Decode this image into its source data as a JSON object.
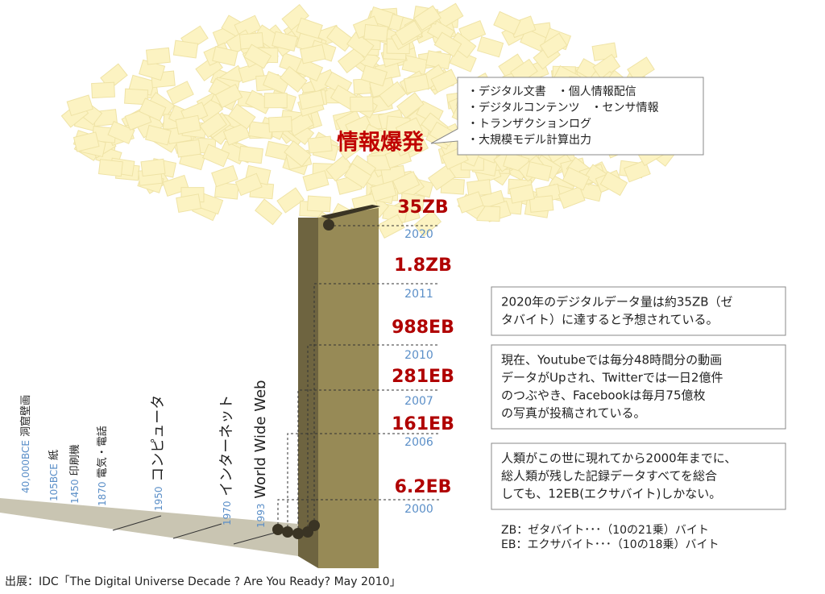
{
  "title": "情報爆発",
  "callout": [
    "・デジタル文書　・個人情報配信",
    "・デジタルコンテンツ　・センサ情報",
    "・トランザクションログ",
    "・大規模モデル計算出力"
  ],
  "milestones": [
    {
      "amount": "35ZB",
      "year": "2020"
    },
    {
      "amount": "1.8ZB",
      "year": "2011"
    },
    {
      "amount": "988EB",
      "year": "2010"
    },
    {
      "amount": "281EB",
      "year": "2007"
    },
    {
      "amount": "161EB",
      "year": "2006"
    },
    {
      "amount": "6.2EB",
      "year": "2000"
    }
  ],
  "timeline": [
    {
      "year": "40,000BCE",
      "event": "洞窟壁画"
    },
    {
      "year": "105BCE",
      "event": "紙"
    },
    {
      "year": "1450",
      "event": "印刷機"
    },
    {
      "year": "1870",
      "event": "電気・電話"
    },
    {
      "year": "1950",
      "event": "コンピュータ"
    },
    {
      "year": "1970",
      "event": "インターネット"
    },
    {
      "year": "1993",
      "event": "World Wide Web"
    }
  ],
  "notes": [
    [
      "2020年のデジタルデータ量は約35ZB（ゼ",
      "タバイト）に達すると予想されている。"
    ],
    [
      "現在、Youtubeでは毎分48時間分の動画",
      "データがUpされ、Twitterでは一日2億件",
      "のつぶやき、Facebookは毎月75億枚",
      "の写真が投稿されている。"
    ],
    [
      "人類がこの世に現れてから2000年までに、",
      "総人類が残した記録データすべてを総合",
      "しても、12EB(エクサバイト)しかない。"
    ]
  ],
  "units": [
    "ZB：ゼタバイト･･･（10の21乗）バイト",
    "EB：エクサバイト･･･（10の18乗）バイト"
  ],
  "source": "出展：IDC「The Digital Universe Decade ? Are You Ready?  May 2010」"
}
